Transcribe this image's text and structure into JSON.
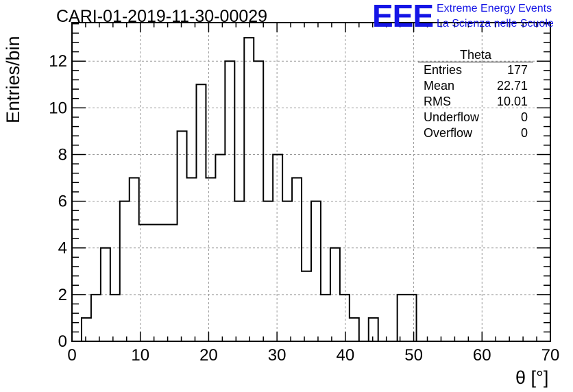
{
  "title": "CARI-01-2019-11-30-00029",
  "logo": {
    "text": "EEE",
    "line1": "Extreme Energy Events",
    "line2": "La Scienza nelle Scuole",
    "color": "#1515e6"
  },
  "stats": {
    "title": "Theta",
    "rows": [
      {
        "label": "Entries",
        "value": "177"
      },
      {
        "label": "Mean",
        "value": "22.71"
      },
      {
        "label": "RMS",
        "value": "10.01"
      },
      {
        "label": "Underflow",
        "value": "0"
      },
      {
        "label": "Overflow",
        "value": "0"
      }
    ]
  },
  "chart_data": {
    "type": "histogram",
    "xlabel": "θ [°]",
    "ylabel": "Entries/bin",
    "xlim": [
      0,
      70
    ],
    "ylim": [
      0,
      13.65
    ],
    "x_ticks": [
      0,
      10,
      20,
      30,
      40,
      50,
      60,
      70
    ],
    "y_ticks": [
      0,
      2,
      4,
      6,
      8,
      10,
      12
    ],
    "grid": true,
    "line_color": "#000000",
    "bin_edges": [
      1.4,
      2.8,
      4.2,
      5.6,
      7.0,
      8.4,
      9.8,
      11.2,
      12.6,
      14.0,
      15.4,
      16.8,
      18.2,
      19.6,
      21.0,
      22.4,
      23.8,
      25.2,
      26.6,
      28.0,
      29.4,
      30.8,
      32.2,
      33.6,
      35.0,
      36.4,
      37.8,
      39.2,
      40.6,
      42.0,
      43.4,
      44.8,
      46.2,
      47.6,
      49.0,
      50.4
    ],
    "counts": [
      1,
      2,
      4,
      2,
      6,
      7,
      5,
      5,
      5,
      5,
      9,
      7,
      11,
      7,
      8,
      12,
      6,
      13,
      12,
      6,
      8,
      6,
      7,
      3,
      6,
      2,
      4,
      2,
      1,
      0,
      1,
      0,
      0,
      2,
      2
    ]
  }
}
